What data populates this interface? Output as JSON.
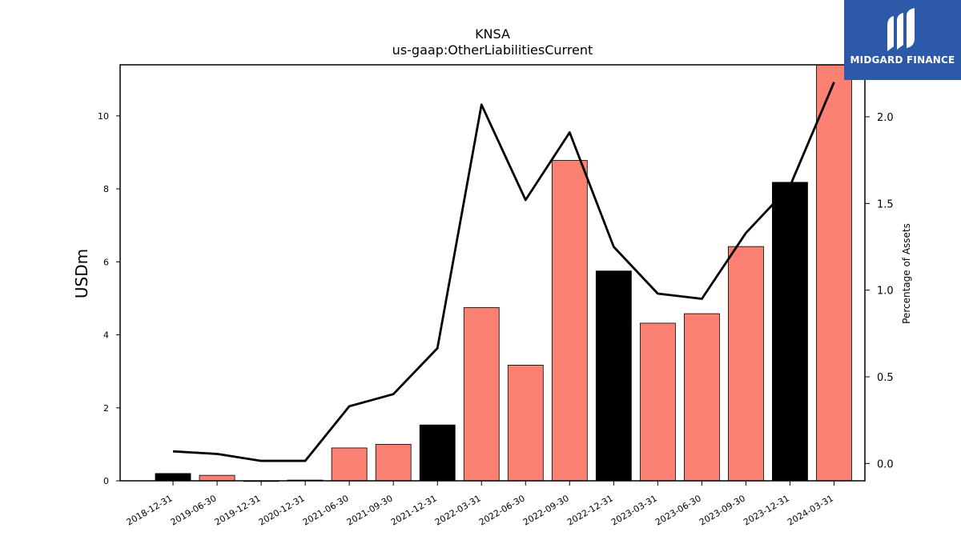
{
  "chart_data": {
    "type": "bar",
    "title": "KNSA",
    "subtitle": "us-gaap:OtherLiabilitiesCurrent",
    "ylabel": "USDm",
    "y2label": "Percentage of Assets",
    "categories": [
      "2018-12-31",
      "2019-06-30",
      "2019-12-31",
      "2020-12-31",
      "2021-06-30",
      "2021-09-30",
      "2021-12-31",
      "2022-03-31",
      "2022-06-30",
      "2022-09-30",
      "2022-12-31",
      "2023-03-31",
      "2023-06-30",
      "2023-09-30",
      "2023-12-31",
      "2024-03-31"
    ],
    "series": [
      {
        "type": "bar",
        "values": [
          0.2,
          0.15,
          0.0,
          0.02,
          0.9,
          1.0,
          1.53,
          4.75,
          3.17,
          8.78,
          5.75,
          4.32,
          4.58,
          6.42,
          8.18,
          11.5
        ],
        "colors": [
          "#000000",
          "#fa8072",
          "#fa8072",
          "#000000",
          "#fa8072",
          "#fa8072",
          "#000000",
          "#fa8072",
          "#fa8072",
          "#fa8072",
          "#000000",
          "#fa8072",
          "#fa8072",
          "#fa8072",
          "#000000",
          "#fa8072"
        ]
      },
      {
        "type": "line",
        "axis": "right",
        "values": [
          0.07,
          0.055,
          0.015,
          0.015,
          0.33,
          0.4,
          0.665,
          2.07,
          1.52,
          1.91,
          1.25,
          0.98,
          0.95,
          1.33,
          1.6,
          2.2
        ],
        "color": "#000000"
      }
    ],
    "ylim": [
      0,
      11.4
    ],
    "y2lim": [
      -0.1,
      2.3
    ],
    "yticks": [
      0,
      2,
      4,
      6,
      8,
      10
    ],
    "y2ticks": [
      0.0,
      0.5,
      1.0,
      1.5,
      2.0
    ],
    "y2tick_labels": [
      "0.0",
      "0.5",
      "1.0",
      "1.5",
      "2.0"
    ],
    "grid": false,
    "legend": "none"
  },
  "logo": {
    "text": "MIDGARD FINANCE",
    "background": "#2c5aa8"
  }
}
